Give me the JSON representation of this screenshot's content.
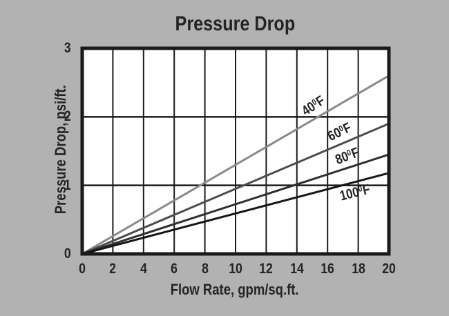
{
  "colors": {
    "background": "#b2b2b2",
    "plot_background": "#ffffff",
    "grid": "#1a1a1a",
    "text": "#242424"
  },
  "chart_data": {
    "type": "line",
    "title": "Pressure Drop",
    "xlabel": "Flow Rate, gpm/sq.ft.",
    "ylabel": "Pressure Drop, psi/ft.",
    "xlim": [
      0,
      20
    ],
    "ylim": [
      0,
      3
    ],
    "x_ticks": [
      0,
      2,
      4,
      6,
      8,
      10,
      12,
      14,
      16,
      18,
      20
    ],
    "y_ticks": [
      0,
      1,
      2,
      3
    ],
    "grid": "on",
    "legend_position": "inline-labels",
    "series": [
      {
        "name": "40°F",
        "color": "#8a8a8a",
        "x": [
          0,
          20
        ],
        "y": [
          0,
          2.6
        ],
        "label": {
          "num": "40",
          "sup": "0",
          "unit": "F"
        },
        "label_x": 15.1,
        "label_dy": -19,
        "label_rotation": -33
      },
      {
        "name": "60°F",
        "color": "#4d4d4d",
        "x": [
          0,
          20
        ],
        "y": [
          0,
          1.9
        ],
        "label": {
          "num": "60",
          "sup": "0",
          "unit": "F"
        },
        "label_x": 16.8,
        "label_dy": -17,
        "label_rotation": -26
      },
      {
        "name": "80°F",
        "color": "#2f2f2f",
        "x": [
          0,
          20
        ],
        "y": [
          0,
          1.45
        ],
        "label": {
          "num": "80",
          "sup": "0",
          "unit": "F"
        },
        "label_x": 17.3,
        "label_dy": -16,
        "label_rotation": -21
      },
      {
        "name": "100°F",
        "color": "#161616",
        "x": [
          0,
          20
        ],
        "y": [
          0,
          1.18
        ],
        "label": {
          "num": "100",
          "sup": "0",
          "unit": "F"
        },
        "label_x": 17.8,
        "label_dy": 16,
        "label_rotation": -14
      }
    ]
  }
}
